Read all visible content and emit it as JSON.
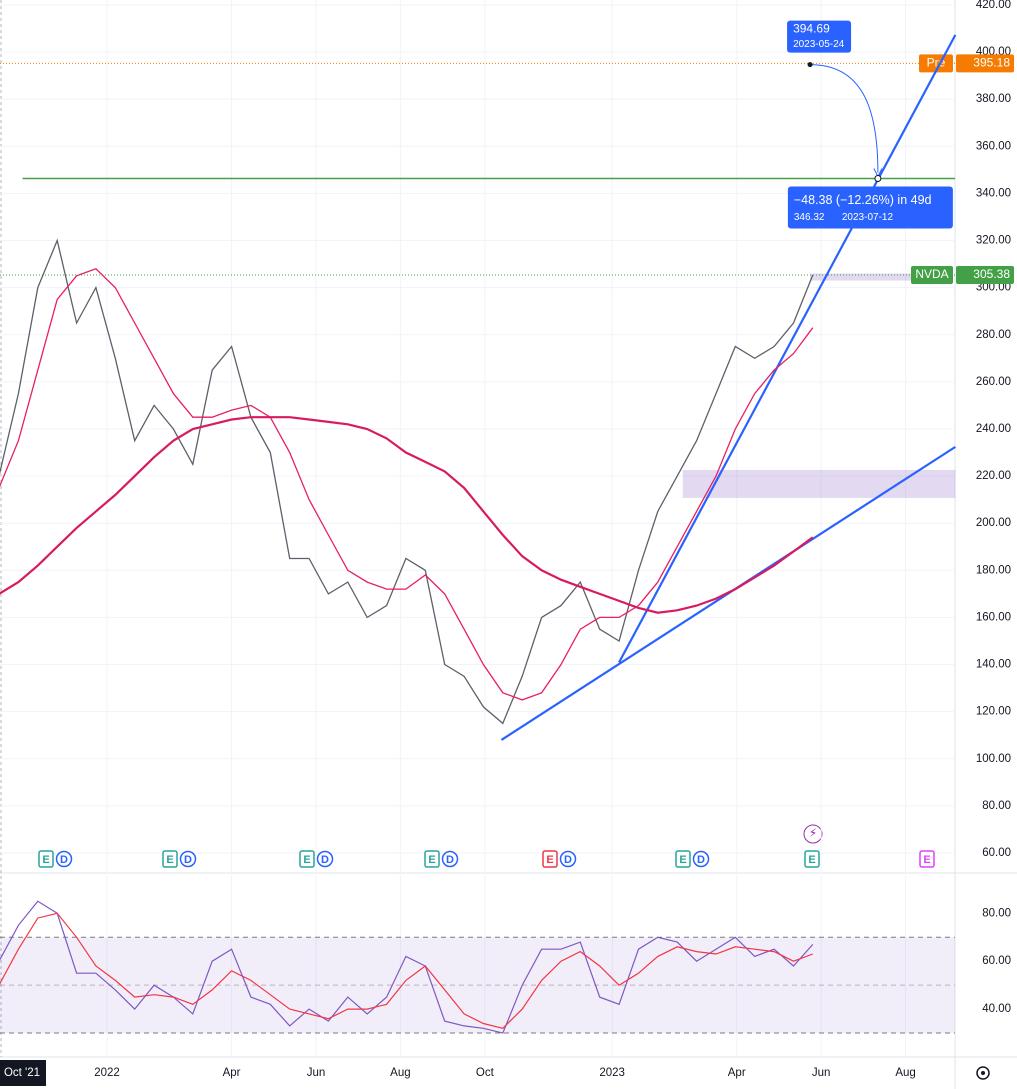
{
  "chart_data": {
    "type": "line",
    "x": [
      "2021-10-15",
      "2021-10-29",
      "2021-11-12",
      "2021-11-26",
      "2021-12-10",
      "2021-12-24",
      "2022-01-07",
      "2022-01-21",
      "2022-02-04",
      "2022-02-18",
      "2022-03-04",
      "2022-03-18",
      "2022-04-01",
      "2022-04-15",
      "2022-04-29",
      "2022-05-13",
      "2022-05-27",
      "2022-06-10",
      "2022-06-24",
      "2022-07-08",
      "2022-07-22",
      "2022-08-05",
      "2022-08-19",
      "2022-09-02",
      "2022-09-16",
      "2022-09-30",
      "2022-10-14",
      "2022-10-28",
      "2022-11-11",
      "2022-11-25",
      "2022-12-09",
      "2022-12-23",
      "2023-01-06",
      "2023-01-20",
      "2023-02-03",
      "2023-02-17",
      "2023-03-03",
      "2023-03-17",
      "2023-03-31",
      "2023-04-14",
      "2023-04-28",
      "2023-05-12",
      "2023-05-26"
    ],
    "series": [
      {
        "color": "#5d606b",
        "values": [
          220,
          255,
          300,
          320,
          285,
          300,
          270,
          235,
          250,
          240,
          225,
          265,
          275,
          245,
          230,
          185,
          185,
          170,
          175,
          160,
          165,
          185,
          180,
          140,
          135,
          122,
          115,
          135,
          160,
          165,
          175,
          155,
          150,
          180,
          205,
          220,
          235,
          255,
          275,
          270,
          275,
          285,
          305.38
        ]
      },
      {
        "color": "#e91e63",
        "values": [
          215,
          235,
          265,
          295,
          305,
          308,
          300,
          285,
          270,
          255,
          245,
          245,
          248,
          250,
          245,
          230,
          210,
          195,
          180,
          175,
          172,
          172,
          178,
          170,
          155,
          140,
          128,
          125,
          128,
          140,
          155,
          160,
          160,
          165,
          175,
          190,
          205,
          220,
          240,
          255,
          265,
          272,
          283
        ]
      },
      {
        "color": "#d81b60",
        "values": [
          170,
          175,
          182,
          190,
          198,
          205,
          212,
          220,
          228,
          235,
          240,
          242,
          244,
          245,
          245,
          245,
          244,
          243,
          242,
          240,
          236,
          230,
          226,
          222,
          215,
          205,
          195,
          186,
          180,
          176,
          173,
          170,
          167,
          164,
          162,
          163,
          165,
          168,
          172,
          177,
          182,
          188,
          194
        ]
      }
    ],
    "ylim": [
      51.5,
      422.1
    ],
    "yticks": [
      {
        "value": 60,
        "label": "60.00"
      },
      {
        "value": 80,
        "label": "80.00"
      },
      {
        "value": 100,
        "label": "100.00"
      },
      {
        "value": 120,
        "label": "120.00"
      },
      {
        "value": 140,
        "label": "140.00"
      },
      {
        "value": 160,
        "label": "160.00"
      },
      {
        "value": 180,
        "label": "180.00"
      },
      {
        "value": 200,
        "label": "200.00"
      },
      {
        "value": 220,
        "label": "220.00"
      },
      {
        "value": 240,
        "label": "240.00"
      },
      {
        "value": 260,
        "label": "260.00"
      },
      {
        "value": 280,
        "label": "280.00"
      },
      {
        "value": 300,
        "label": "300.00"
      },
      {
        "value": 320,
        "label": "320.00"
      },
      {
        "value": 340,
        "label": "340.00"
      },
      {
        "value": 360,
        "label": "360.00"
      },
      {
        "value": 380,
        "label": "380.00"
      },
      {
        "value": 400,
        "label": "400.00"
      },
      {
        "value": 420,
        "label": "420.00"
      }
    ],
    "xticks": [
      {
        "value": "2021-10-01",
        "label": "Oct '21"
      },
      {
        "value": "2022-01-01",
        "label": "2022"
      },
      {
        "value": "2022-04-01",
        "label": "Apr"
      },
      {
        "value": "2022-06-01",
        "label": "Jun"
      },
      {
        "value": "2022-08-01",
        "label": "Aug"
      },
      {
        "value": "2022-10-01",
        "label": "Oct"
      },
      {
        "value": "2023-01-01",
        "label": "2023"
      },
      {
        "value": "2023-04-01",
        "label": "Apr"
      },
      {
        "value": "2023-06-01",
        "label": "Jun"
      },
      {
        "value": "2023-08-01",
        "label": "Aug"
      }
    ],
    "grid": true,
    "price_lines": [
      {
        "label": "Pre",
        "value": 395.18,
        "color": "#f57c00"
      },
      {
        "label": "NVDA",
        "value": 305.38,
        "color": "#43a047"
      }
    ],
    "resistance": {
      "value": 346.32,
      "start": "2021-11-01",
      "color": "#43a047"
    },
    "trendlines": [
      {
        "start": [
          "2022-10-13",
          108
        ],
        "end": [
          "2023-09-06",
          232.4
        ],
        "color": "#2962ff"
      },
      {
        "start": [
          "2023-01-06",
          140.9
        ],
        "end": [
          "2023-09-06",
          407.3
        ],
        "color": "#2962ff"
      }
    ],
    "zones": [
      {
        "from": "2023-02-21",
        "to": "2023-09-06",
        "low": 210.7,
        "high": 222.6
      },
      {
        "from": "2023-05-24",
        "to": "2023-08-06",
        "low": 303,
        "high": 306
      }
    ],
    "measure": {
      "start": {
        "value": 394.69,
        "date": "2023-05-24"
      },
      "end": {
        "value": 346.32,
        "date": "2023-07-12"
      },
      "label": "−48.38 (−12.26%) in 49d"
    },
    "events": [
      [
        "E",
        "D"
      ],
      [
        "E",
        "D"
      ],
      [
        "E",
        "D"
      ],
      [
        "E",
        "D"
      ],
      [
        "E",
        "D"
      ],
      [
        "E",
        "D"
      ],
      [
        "E"
      ],
      [
        "E"
      ]
    ],
    "rsi": {
      "series": [
        {
          "color": "#7e57c2",
          "values": [
            60,
            75,
            85,
            80,
            55,
            55,
            48,
            40,
            50,
            45,
            38,
            60,
            65,
            45,
            42,
            33,
            40,
            35,
            45,
            38,
            45,
            62,
            58,
            35,
            33,
            32,
            30,
            50,
            65,
            65,
            68,
            45,
            42,
            65,
            70,
            68,
            60,
            65,
            70,
            62,
            65,
            58,
            67
          ]
        },
        {
          "color": "#f23645",
          "values": [
            50,
            65,
            78,
            80,
            70,
            58,
            52,
            45,
            46,
            45,
            42,
            48,
            56,
            52,
            46,
            40,
            38,
            36,
            40,
            40,
            42,
            52,
            58,
            48,
            38,
            34,
            32,
            40,
            52,
            60,
            64,
            58,
            50,
            55,
            62,
            66,
            64,
            63,
            66,
            65,
            64,
            60,
            63
          ]
        }
      ],
      "ylim": [
        20,
        96
      ],
      "yticks": [
        {
          "value": 40,
          "label": "40.00"
        },
        {
          "value": 60,
          "label": "60.00"
        },
        {
          "value": 80,
          "label": "80.00"
        }
      ],
      "bands": [
        30,
        50,
        70
      ]
    }
  }
}
